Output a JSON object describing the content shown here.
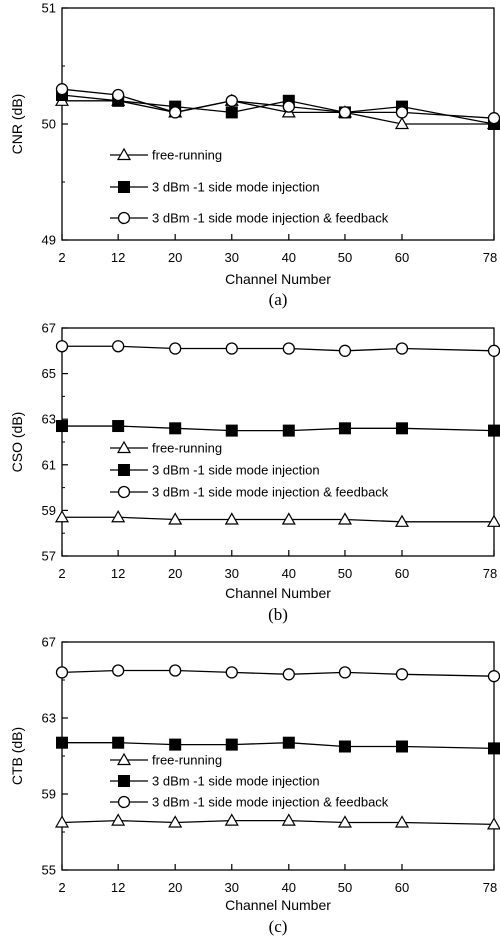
{
  "chart_data": [
    {
      "type": "line",
      "panel_label": "(a)",
      "xlabel": "Channel Number",
      "ylabel": "CNR (dB)",
      "ylim": [
        49,
        51
      ],
      "yticks": [
        "49",
        "50",
        "51"
      ],
      "x": [
        "2",
        "12",
        "20",
        "30",
        "40",
        "50",
        "60",
        "78"
      ],
      "series": [
        {
          "name": "free-running",
          "marker": "triangle-open",
          "values": [
            50.2,
            50.2,
            50.1,
            50.2,
            50.1,
            50.1,
            50.0,
            50.0
          ]
        },
        {
          "name": "3 dBm -1 side mode injection",
          "marker": "square-filled",
          "values": [
            50.25,
            50.2,
            50.15,
            50.1,
            50.2,
            50.1,
            50.15,
            50.0
          ]
        },
        {
          "name": "3 dBm -1 side mode injection & feedback",
          "marker": "circle-open",
          "values": [
            50.3,
            50.25,
            50.1,
            50.2,
            50.15,
            50.1,
            50.1,
            50.05
          ]
        }
      ],
      "legend": "center-left",
      "grid": false
    },
    {
      "type": "line",
      "panel_label": "(b)",
      "xlabel": "Channel Number",
      "ylabel": "CSO (dB)",
      "ylim": [
        57,
        67
      ],
      "yticks": [
        "57",
        "59",
        "61",
        "63",
        "65",
        "67"
      ],
      "x": [
        "2",
        "12",
        "20",
        "30",
        "40",
        "50",
        "60",
        "78"
      ],
      "series": [
        {
          "name": "free-running",
          "marker": "triangle-open",
          "values": [
            58.7,
            58.7,
            58.6,
            58.6,
            58.6,
            58.6,
            58.5,
            58.5
          ]
        },
        {
          "name": "3 dBm -1 side mode injection",
          "marker": "square-filled",
          "values": [
            62.7,
            62.7,
            62.6,
            62.5,
            62.5,
            62.6,
            62.6,
            62.5
          ]
        },
        {
          "name": "3 dBm -1 side mode injection & feedback",
          "marker": "circle-open",
          "values": [
            66.2,
            66.2,
            66.1,
            66.1,
            66.1,
            66.0,
            66.1,
            66.0
          ]
        }
      ],
      "legend": "center-left",
      "grid": false
    },
    {
      "type": "line",
      "panel_label": "(c)",
      "xlabel": "Channel Number",
      "ylabel": "CTB (dB)",
      "ylim": [
        55,
        67
      ],
      "yticks": [
        "55",
        "59",
        "63",
        "67"
      ],
      "x": [
        "2",
        "12",
        "20",
        "30",
        "40",
        "50",
        "60",
        "78"
      ],
      "series": [
        {
          "name": "free-running",
          "marker": "triangle-open",
          "values": [
            57.5,
            57.6,
            57.5,
            57.6,
            57.6,
            57.5,
            57.5,
            57.4
          ]
        },
        {
          "name": "3 dBm -1 side mode injection",
          "marker": "square-filled",
          "values": [
            61.7,
            61.7,
            61.6,
            61.6,
            61.7,
            61.5,
            61.5,
            61.4
          ]
        },
        {
          "name": "3 dBm -1 side mode injection & feedback",
          "marker": "circle-open",
          "values": [
            65.4,
            65.5,
            65.5,
            65.4,
            65.3,
            65.4,
            65.3,
            65.2
          ]
        }
      ],
      "legend": "center-left",
      "grid": false
    }
  ]
}
